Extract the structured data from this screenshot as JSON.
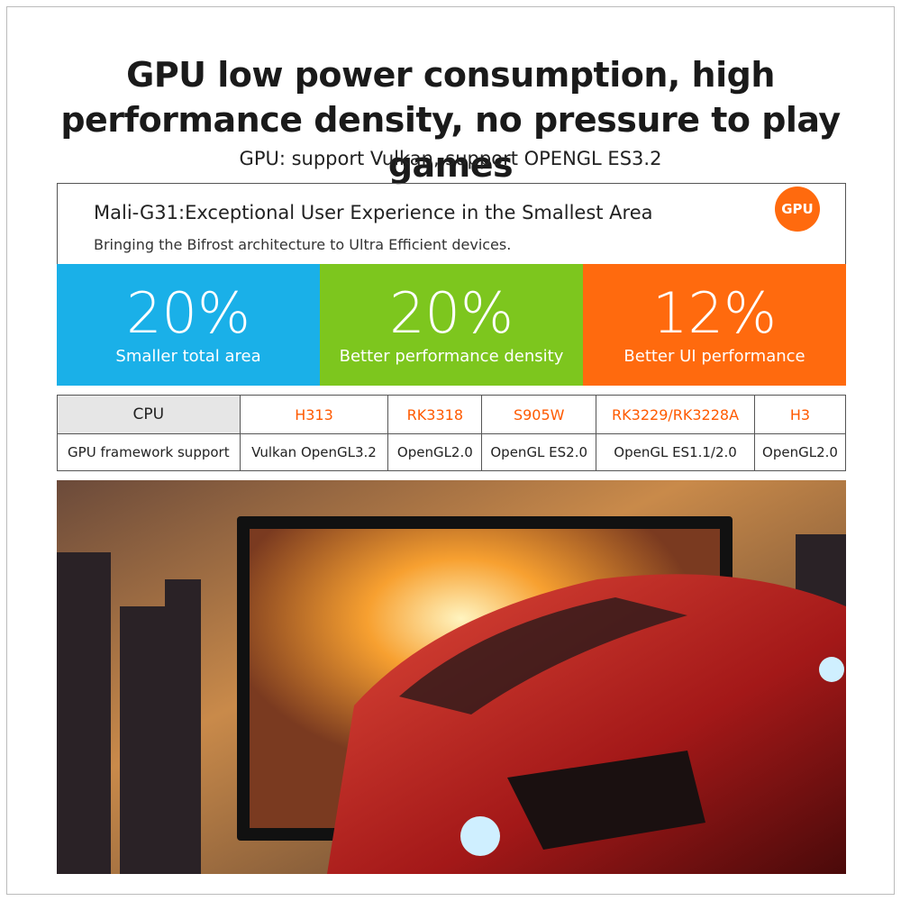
{
  "header": {
    "title": "GPU low power consumption, high performance density, no pressure to play games",
    "subtitle": "GPU: support Vulkan, support OPENGL ES3.2"
  },
  "panel": {
    "title": "Mali-G31:Exceptional User Experience in the Smallest Area",
    "subtitle": "Bringing the Bifrost architecture to Ultra Efficient devices.",
    "badge": "GPU"
  },
  "stats": [
    {
      "value": "20%",
      "label": "Smaller total area"
    },
    {
      "value": "20%",
      "label": "Better performance density"
    },
    {
      "value": "12%",
      "label": "Better UI performance"
    }
  ],
  "table": {
    "rows": [
      [
        "CPU",
        "H313",
        "RK3318",
        "S905W",
        "RK3229/RK3228A",
        "H3"
      ],
      [
        "GPU framework support",
        "Vulkan OpenGL3.2",
        "OpenGL2.0",
        "OpenGL ES2.0",
        "OpenGL ES1.1/2.0",
        "OpenGL2.0"
      ]
    ]
  }
}
